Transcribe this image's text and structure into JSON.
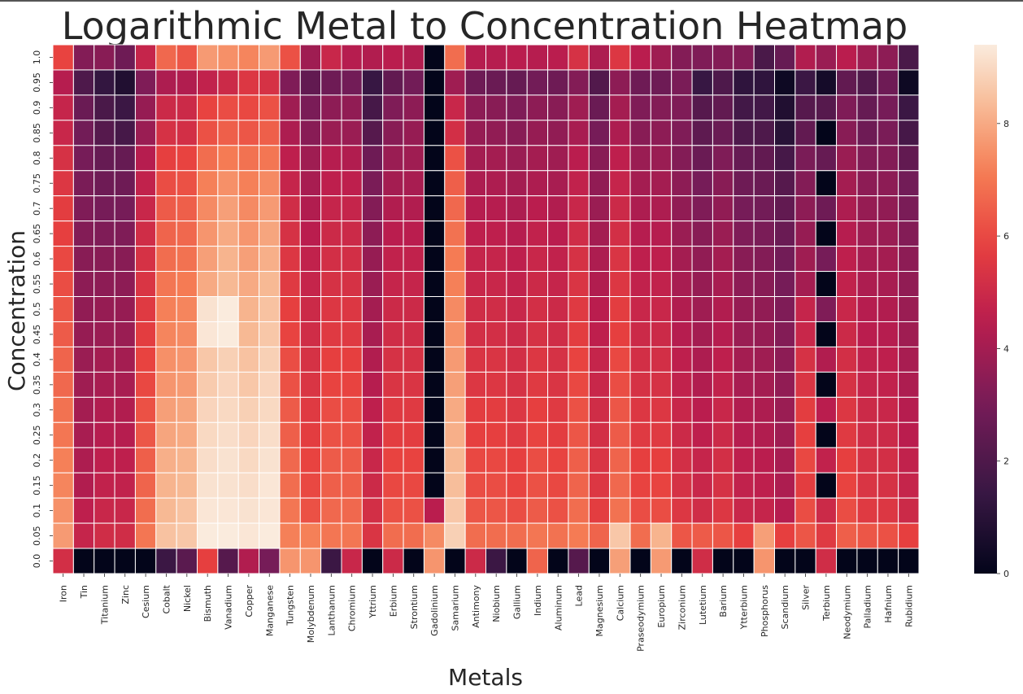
{
  "chart_data": {
    "type": "heatmap",
    "title": "Logarithmic Metal to Concentration Heatmap",
    "xlabel": "Metals",
    "ylabel": "Concentration",
    "x_categories": [
      "Iron",
      "Tin",
      "Titanium",
      "Zinc",
      "Cesium",
      "Cobalt",
      "Nickel",
      "Bismuth",
      "Vanadium",
      "Copper",
      "Manganese",
      "Tungsten",
      "Molybdenum",
      "Lanthanum",
      "Chromium",
      "Yttrium",
      "Erbium",
      "Strontium",
      "Gadolinium",
      "Samarium",
      "Antimony",
      "Niobium",
      "Gallium",
      "Indium",
      "Aluminum",
      "Lead",
      "Magnesium",
      "Calcium",
      "Praseodymium",
      "Europium",
      "Zirconium",
      "Lutetium",
      "Barium",
      "Ytterbium",
      "Phosphorus",
      "Scandium",
      "Silver",
      "Terbium",
      "Neodymium",
      "Palladium",
      "Hafnium",
      "Rubidium"
    ],
    "y_categories": [
      "1.0",
      "0.95",
      "0.9",
      "0.85",
      "0.8",
      "0.75",
      "0.7",
      "0.65",
      "0.6",
      "0.55",
      "0.5",
      "0.45",
      "0.4",
      "0.35",
      "0.3",
      "0.25",
      "0.2",
      "0.15",
      "0.1",
      "0.05",
      "0.0"
    ],
    "colorbar": {
      "min": 0,
      "max": 9.4,
      "ticks": [
        "0",
        "2",
        "4",
        "6",
        "8"
      ],
      "colormap": "rocket"
    },
    "values": [
      [
        5.9,
        3.3,
        3.4,
        2.8,
        4.8,
        6.7,
        6.3,
        7.7,
        7.5,
        7.3,
        7.7,
        6.2,
        3.9,
        4.9,
        4.4,
        4.3,
        4.5,
        4.3,
        0.0,
        6.8,
        4.4,
        4.4,
        4.5,
        4.4,
        4.5,
        5.3,
        4.2,
        5.5,
        4.5,
        3.9,
        3.3,
        3.2,
        3.3,
        3.3,
        1.9,
        2.6,
        4.3,
        3.8,
        4.5,
        3.9,
        3.5,
        1.9
      ],
      [
        4.4,
        2.0,
        1.3,
        0.8,
        3.2,
        4.2,
        4.3,
        4.7,
        5.0,
        5.5,
        5.3,
        3.2,
        2.5,
        2.8,
        2.9,
        1.4,
        2.5,
        2.9,
        0.0,
        3.9,
        2.8,
        2.7,
        2.6,
        2.9,
        2.8,
        3.3,
        2.1,
        3.5,
        2.8,
        2.8,
        3.1,
        1.4,
        2.0,
        1.2,
        1.2,
        0.3,
        1.5,
        0.5,
        2.5,
        2.1,
        2.8,
        0.3
      ],
      [
        4.8,
        2.7,
        1.9,
        1.5,
        3.7,
        5.0,
        5.0,
        5.9,
        6.1,
        6.0,
        6.2,
        3.9,
        3.1,
        3.5,
        3.6,
        1.8,
        3.2,
        3.5,
        0.0,
        4.9,
        3.5,
        3.4,
        3.2,
        3.5,
        3.4,
        3.9,
        2.7,
        4.0,
        3.2,
        3.3,
        3.2,
        2.2,
        2.5,
        1.7,
        1.7,
        0.8,
        2.2,
        2.2,
        3.2,
        2.6,
        3.0,
        1.5
      ],
      [
        4.9,
        2.9,
        2.2,
        1.8,
        3.8,
        5.3,
        5.2,
        6.2,
        6.5,
        6.3,
        6.5,
        4.2,
        3.4,
        3.8,
        3.8,
        2.2,
        3.4,
        3.7,
        0.0,
        5.2,
        3.7,
        3.6,
        3.4,
        3.7,
        3.6,
        4.1,
        3.0,
        4.2,
        3.4,
        3.5,
        3.2,
        2.4,
        2.7,
        2.0,
        2.0,
        1.0,
        2.5,
        0.0,
        3.4,
        2.8,
        3.1,
        1.8
      ],
      [
        5.3,
        3.0,
        2.6,
        2.6,
        4.4,
        5.8,
        5.9,
        6.8,
        7.1,
        6.9,
        7.0,
        4.6,
        3.9,
        4.4,
        4.3,
        2.8,
        3.8,
        3.9,
        0.0,
        6.2,
        4.0,
        4.0,
        3.8,
        4.0,
        3.9,
        4.5,
        3.4,
        4.6,
        3.8,
        3.8,
        3.3,
        2.7,
        3.2,
        2.6,
        2.5,
        1.8,
        3.1,
        2.6,
        3.8,
        3.3,
        3.3,
        2.5
      ],
      [
        5.5,
        3.1,
        2.8,
        2.8,
        4.7,
        6.1,
        6.2,
        7.2,
        7.5,
        7.2,
        7.4,
        4.8,
        4.1,
        4.6,
        4.6,
        3.1,
        4.0,
        4.1,
        0.0,
        6.5,
        4.2,
        4.2,
        4.0,
        4.2,
        4.1,
        4.7,
        3.6,
        4.8,
        4.0,
        4.0,
        3.5,
        3.0,
        3.4,
        2.8,
        2.7,
        2.2,
        3.3,
        0.0,
        4.0,
        3.5,
        3.5,
        2.9
      ],
      [
        5.7,
        3.2,
        3.0,
        3.0,
        4.9,
        6.4,
        6.5,
        7.4,
        7.8,
        7.4,
        7.7,
        5.1,
        4.3,
        4.8,
        4.8,
        3.3,
        4.3,
        4.3,
        0.0,
        6.7,
        4.4,
        4.4,
        4.2,
        4.5,
        4.3,
        4.9,
        3.8,
        5.0,
        4.2,
        4.2,
        3.6,
        3.2,
        3.6,
        3.0,
        2.9,
        2.5,
        3.5,
        2.8,
        4.2,
        3.7,
        3.6,
        3.1
      ],
      [
        5.8,
        3.3,
        3.2,
        3.2,
        5.1,
        6.6,
        6.7,
        7.6,
        8.0,
        7.6,
        7.9,
        5.3,
        4.5,
        5.0,
        5.0,
        3.5,
        4.5,
        4.5,
        0.0,
        6.9,
        4.6,
        4.6,
        4.4,
        4.7,
        4.5,
        5.1,
        4.0,
        5.2,
        4.4,
        4.4,
        3.8,
        3.4,
        3.8,
        3.2,
        3.1,
        2.7,
        3.7,
        0.0,
        4.4,
        3.9,
        3.8,
        3.3
      ],
      [
        6.0,
        3.4,
        3.4,
        3.4,
        5.3,
        6.8,
        6.9,
        7.8,
        8.2,
        7.8,
        8.1,
        5.5,
        4.7,
        5.2,
        5.2,
        3.7,
        4.7,
        4.7,
        0.0,
        7.1,
        4.8,
        4.8,
        4.6,
        4.9,
        4.7,
        5.3,
        4.2,
        5.4,
        4.6,
        4.6,
        4.0,
        3.6,
        4.0,
        3.4,
        3.3,
        2.9,
        3.9,
        3.0,
        4.6,
        4.1,
        4.0,
        3.5
      ],
      [
        6.1,
        3.5,
        3.5,
        3.5,
        5.4,
        7.0,
        7.1,
        8.0,
        8.3,
        8.0,
        8.3,
        5.6,
        4.8,
        5.3,
        5.3,
        3.8,
        4.8,
        4.8,
        0.0,
        7.2,
        4.9,
        4.9,
        4.7,
        5.0,
        4.8,
        5.4,
        4.3,
        5.5,
        4.7,
        4.7,
        4.1,
        3.7,
        4.1,
        3.5,
        3.4,
        3.0,
        4.0,
        0.0,
        4.7,
        4.2,
        4.1,
        3.6
      ],
      [
        6.3,
        3.6,
        3.7,
        3.7,
        5.6,
        7.2,
        7.3,
        9.2,
        9.4,
        8.2,
        8.5,
        5.8,
        5.0,
        5.5,
        5.5,
        4.0,
        5.0,
        5.0,
        0.0,
        7.4,
        5.1,
        5.1,
        4.9,
        5.2,
        5.0,
        5.6,
        4.5,
        5.7,
        4.9,
        4.9,
        4.3,
        3.9,
        4.3,
        3.7,
        3.6,
        3.2,
        4.8,
        3.2,
        4.9,
        4.4,
        4.3,
        3.8
      ],
      [
        6.4,
        3.7,
        3.8,
        3.8,
        5.7,
        7.3,
        7.4,
        9.3,
        9.4,
        8.3,
        8.6,
        5.9,
        5.1,
        5.6,
        5.6,
        4.1,
        5.1,
        5.1,
        0.0,
        7.5,
        5.2,
        5.2,
        5.0,
        5.3,
        5.1,
        5.7,
        4.6,
        5.8,
        5.0,
        5.0,
        4.4,
        4.0,
        4.4,
        3.8,
        3.7,
        3.3,
        4.9,
        0.0,
        5.0,
        4.5,
        4.4,
        3.9
      ],
      [
        6.6,
        3.8,
        4.0,
        4.0,
        5.9,
        7.5,
        7.6,
        8.6,
        8.8,
        8.5,
        8.8,
        6.1,
        5.3,
        5.8,
        5.8,
        4.3,
        5.3,
        5.3,
        0.0,
        7.7,
        5.4,
        5.4,
        5.2,
        5.5,
        5.3,
        5.9,
        4.8,
        6.0,
        5.2,
        5.2,
        4.6,
        4.2,
        4.6,
        4.0,
        3.9,
        3.5,
        5.3,
        4.3,
        5.2,
        4.7,
        4.6,
        4.1
      ],
      [
        6.7,
        3.9,
        4.1,
        4.1,
        6.0,
        7.6,
        7.7,
        8.7,
        8.9,
        8.6,
        8.9,
        6.2,
        5.4,
        5.9,
        5.9,
        4.4,
        5.4,
        5.4,
        0.0,
        7.8,
        5.5,
        5.5,
        5.3,
        5.6,
        5.4,
        6.0,
        4.9,
        6.1,
        5.3,
        5.3,
        4.7,
        4.3,
        4.7,
        4.1,
        4.0,
        3.6,
        5.4,
        0.0,
        5.3,
        4.8,
        4.7,
        4.2
      ],
      [
        6.9,
        4.0,
        4.3,
        4.3,
        6.2,
        7.8,
        7.9,
        8.9,
        9.0,
        8.8,
        9.0,
        6.4,
        5.6,
        6.1,
        6.1,
        4.6,
        5.6,
        5.6,
        0.0,
        8.0,
        5.7,
        5.7,
        5.5,
        5.8,
        5.6,
        6.2,
        5.1,
        6.3,
        5.5,
        5.5,
        4.9,
        4.5,
        4.9,
        4.3,
        4.2,
        3.8,
        5.7,
        4.5,
        5.5,
        5.0,
        4.9,
        4.4
      ],
      [
        7.0,
        4.1,
        4.4,
        4.4,
        6.3,
        7.9,
        8.0,
        9.0,
        9.1,
        8.9,
        9.1,
        6.5,
        5.7,
        6.2,
        6.2,
        4.7,
        5.7,
        5.7,
        0.0,
        8.1,
        5.8,
        5.8,
        5.6,
        5.9,
        5.7,
        6.3,
        5.2,
        6.4,
        5.6,
        5.6,
        5.0,
        4.6,
        5.0,
        4.4,
        4.3,
        3.9,
        5.8,
        0.0,
        5.6,
        5.1,
        5.0,
        4.5
      ],
      [
        7.2,
        4.2,
        4.6,
        4.6,
        6.5,
        8.1,
        8.2,
        9.1,
        9.2,
        9.0,
        9.2,
        6.7,
        5.9,
        6.4,
        6.4,
        4.9,
        5.9,
        5.9,
        0.0,
        8.3,
        6.0,
        6.0,
        5.8,
        6.1,
        5.9,
        6.5,
        5.4,
        6.6,
        5.8,
        5.8,
        5.2,
        4.8,
        5.2,
        4.6,
        4.5,
        4.1,
        6.0,
        4.7,
        5.8,
        5.3,
        5.2,
        4.7
      ],
      [
        7.3,
        4.3,
        4.7,
        4.7,
        6.6,
        8.2,
        8.3,
        9.2,
        9.2,
        9.1,
        9.3,
        6.8,
        6.0,
        6.5,
        6.5,
        5.0,
        6.0,
        6.0,
        0.0,
        8.4,
        6.1,
        6.1,
        5.9,
        6.2,
        6.0,
        6.6,
        5.5,
        6.7,
        5.9,
        5.9,
        5.3,
        4.9,
        5.3,
        4.7,
        4.6,
        4.2,
        5.7,
        0.0,
        5.9,
        5.4,
        5.3,
        4.8
      ],
      [
        7.5,
        4.6,
        4.9,
        4.9,
        6.8,
        8.3,
        8.5,
        9.3,
        9.3,
        9.2,
        9.3,
        7.0,
        6.2,
        6.7,
        6.7,
        5.2,
        6.2,
        6.2,
        4.5,
        8.6,
        6.3,
        6.3,
        6.1,
        6.4,
        6.2,
        6.8,
        5.7,
        6.9,
        6.1,
        6.1,
        5.5,
        5.1,
        5.5,
        4.9,
        4.8,
        4.4,
        6.1,
        5.0,
        6.1,
        5.6,
        5.5,
        5.0
      ],
      [
        7.7,
        4.8,
        5.1,
        5.1,
        7.0,
        8.5,
        8.6,
        9.4,
        9.4,
        9.3,
        9.4,
        7.2,
        7.2,
        7.0,
        7.0,
        5.4,
        6.8,
        6.8,
        7.4,
        8.8,
        6.8,
        6.8,
        6.8,
        7.0,
        6.9,
        7.1,
        6.6,
        8.6,
        6.8,
        8.2,
        6.3,
        6.4,
        6.3,
        5.8,
        7.8,
        5.8,
        6.3,
        5.6,
        6.5,
        6.3,
        6.2,
        5.8
      ],
      [
        5.2,
        0.0,
        0.0,
        0.0,
        0.0,
        1.5,
        2.3,
        5.8,
        2.2,
        4.3,
        3.0,
        7.6,
        7.6,
        1.5,
        4.9,
        0.0,
        5.0,
        0.0,
        7.6,
        0.0,
        5.0,
        1.5,
        0.0,
        6.6,
        0.0,
        2.2,
        0.0,
        7.8,
        0.0,
        7.7,
        0.0,
        5.1,
        0.0,
        0.0,
        7.6,
        0.0,
        0.0,
        5.1,
        0.0,
        0.0,
        0.0,
        0.0
      ]
    ]
  }
}
